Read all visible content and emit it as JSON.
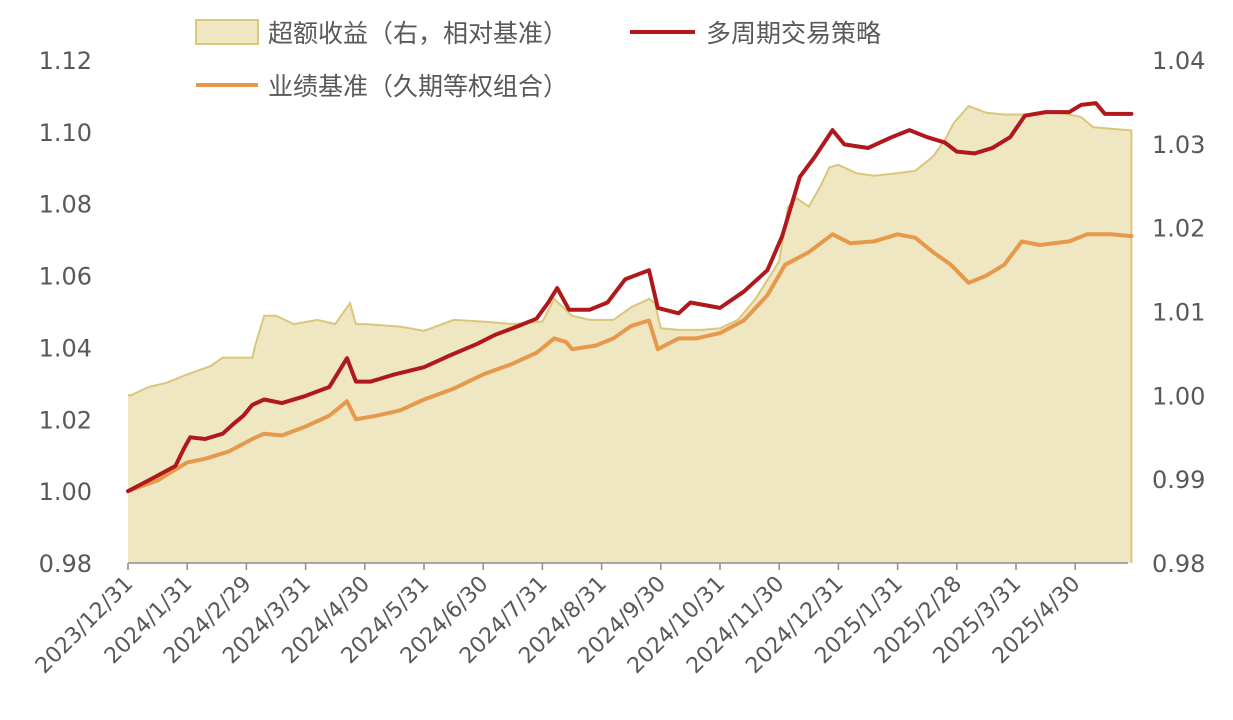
{
  "chart_data": {
    "type": "line",
    "x_categories": [
      "2023/12/31",
      "2024/1/31",
      "2024/2/29",
      "2024/3/31",
      "2024/4/30",
      "2024/5/31",
      "2024/6/30",
      "2024/7/31",
      "2024/8/31",
      "2024/9/30",
      "2024/10/31",
      "2024/11/30",
      "2024/12/31",
      "2025/1/31",
      "2025/2/28",
      "2025/3/31",
      "2025/4/30"
    ],
    "left_axis": {
      "ylim": [
        0.98,
        1.12
      ],
      "ticks": [
        "0.98",
        "1.00",
        "1.02",
        "1.04",
        "1.06",
        "1.08",
        "1.10",
        "1.12"
      ]
    },
    "right_axis": {
      "ylim": [
        0.98,
        1.04
      ],
      "ticks": [
        "0.98",
        "0.99",
        "1.00",
        "1.01",
        "1.02",
        "1.03",
        "1.04"
      ]
    },
    "legend": [
      {
        "label": "超额收益（右，相对基准）",
        "kind": "area"
      },
      {
        "label": "多周期交易策略",
        "kind": "line"
      },
      {
        "label": "业绩基准（久期等权组合）",
        "kind": "line"
      }
    ],
    "series": [
      {
        "name": "超额收益（右，相对基准）",
        "axis": "right",
        "color": "#d9c77a",
        "fill": "#efe6c2",
        "points": [
          [
            0,
            1.0
          ],
          [
            0.05,
            1.0
          ],
          [
            0.35,
            1.001
          ],
          [
            0.65,
            1.0015
          ],
          [
            1.0,
            1.0025
          ],
          [
            1.4,
            1.0035
          ],
          [
            1.6,
            1.0045
          ],
          [
            2.1,
            1.0045
          ],
          [
            2.15,
            1.006
          ],
          [
            2.3,
            1.0095
          ],
          [
            2.5,
            1.0095
          ],
          [
            2.8,
            1.0085
          ],
          [
            3.2,
            1.009
          ],
          [
            3.5,
            1.0085
          ],
          [
            3.75,
            1.011
          ],
          [
            3.85,
            1.0085
          ],
          [
            4.0,
            1.0085
          ],
          [
            4.6,
            1.0082
          ],
          [
            5.0,
            1.0077
          ],
          [
            5.5,
            1.009
          ],
          [
            6.0,
            1.0088
          ],
          [
            6.5,
            1.0085
          ],
          [
            7.0,
            1.0088
          ],
          [
            7.2,
            1.0115
          ],
          [
            7.5,
            1.0095
          ],
          [
            7.8,
            1.009
          ],
          [
            8.2,
            1.009
          ],
          [
            8.5,
            1.0105
          ],
          [
            8.8,
            1.0115
          ],
          [
            8.9,
            1.011
          ],
          [
            9.0,
            1.008
          ],
          [
            9.3,
            1.0078
          ],
          [
            9.7,
            1.0078
          ],
          [
            10.0,
            1.008
          ],
          [
            10.3,
            1.009
          ],
          [
            10.6,
            1.0115
          ],
          [
            11.0,
            1.016
          ],
          [
            11.15,
            1.0225
          ],
          [
            11.3,
            1.0235
          ],
          [
            11.5,
            1.0225
          ],
          [
            11.7,
            1.025
          ],
          [
            11.85,
            1.0272
          ],
          [
            12.0,
            1.0275
          ],
          [
            12.3,
            1.0265
          ],
          [
            12.6,
            1.0262
          ],
          [
            13.0,
            1.0265
          ],
          [
            13.3,
            1.0268
          ],
          [
            13.6,
            1.0285
          ],
          [
            13.8,
            1.0305
          ],
          [
            13.95,
            1.0325
          ],
          [
            14.2,
            1.0345
          ],
          [
            14.5,
            1.0337
          ],
          [
            14.8,
            1.0335
          ],
          [
            15.2,
            1.0335
          ],
          [
            15.6,
            1.0338
          ],
          [
            15.9,
            1.0335
          ],
          [
            16.1,
            1.0332
          ],
          [
            16.3,
            1.032
          ],
          [
            16.6,
            1.0318
          ],
          [
            16.95,
            1.0316
          ]
        ]
      },
      {
        "name": "多周期交易策略",
        "axis": "left",
        "color": "#b0181c",
        "points": [
          [
            0,
            1.0
          ],
          [
            0.35,
            1.003
          ],
          [
            0.8,
            1.007
          ],
          [
            0.95,
            1.012
          ],
          [
            1.05,
            1.015
          ],
          [
            1.3,
            1.0145
          ],
          [
            1.6,
            1.016
          ],
          [
            1.8,
            1.019
          ],
          [
            1.95,
            1.021
          ],
          [
            2.1,
            1.024
          ],
          [
            2.3,
            1.0255
          ],
          [
            2.6,
            1.0245
          ],
          [
            3.0,
            1.0265
          ],
          [
            3.4,
            1.029
          ],
          [
            3.7,
            1.037
          ],
          [
            3.85,
            1.0305
          ],
          [
            4.1,
            1.0305
          ],
          [
            4.5,
            1.0325
          ],
          [
            5.0,
            1.0345
          ],
          [
            5.4,
            1.0375
          ],
          [
            5.9,
            1.041
          ],
          [
            6.2,
            1.0435
          ],
          [
            6.6,
            1.046
          ],
          [
            6.9,
            1.048
          ],
          [
            7.1,
            1.0525
          ],
          [
            7.25,
            1.0565
          ],
          [
            7.45,
            1.0505
          ],
          [
            7.8,
            1.0505
          ],
          [
            8.1,
            1.0525
          ],
          [
            8.4,
            1.059
          ],
          [
            8.8,
            1.0615
          ],
          [
            8.95,
            1.051
          ],
          [
            9.3,
            1.0495
          ],
          [
            9.5,
            1.0525
          ],
          [
            10.0,
            1.051
          ],
          [
            10.4,
            1.0555
          ],
          [
            10.8,
            1.0615
          ],
          [
            11.05,
            1.071
          ],
          [
            11.35,
            1.0875
          ],
          [
            11.6,
            1.093
          ],
          [
            11.9,
            1.1005
          ],
          [
            12.1,
            1.0965
          ],
          [
            12.5,
            1.0955
          ],
          [
            12.9,
            1.0985
          ],
          [
            13.2,
            1.1005
          ],
          [
            13.5,
            1.0985
          ],
          [
            13.8,
            1.097
          ],
          [
            14.0,
            1.0945
          ],
          [
            14.3,
            1.094
          ],
          [
            14.6,
            1.0955
          ],
          [
            14.9,
            1.0985
          ],
          [
            15.15,
            1.1045
          ],
          [
            15.5,
            1.1055
          ],
          [
            15.9,
            1.1055
          ],
          [
            16.1,
            1.1075
          ],
          [
            16.35,
            1.108
          ],
          [
            16.5,
            1.105
          ],
          [
            16.95,
            1.105
          ]
        ]
      },
      {
        "name": "业绩基准（久期等权组合）",
        "axis": "left",
        "color": "#e6994a",
        "points": [
          [
            0,
            1.0
          ],
          [
            0.5,
            1.003
          ],
          [
            1.0,
            1.008
          ],
          [
            1.3,
            1.009
          ],
          [
            1.7,
            1.011
          ],
          [
            2.1,
            1.0145
          ],
          [
            2.3,
            1.016
          ],
          [
            2.6,
            1.0155
          ],
          [
            3.0,
            1.018
          ],
          [
            3.4,
            1.021
          ],
          [
            3.7,
            1.025
          ],
          [
            3.85,
            1.02
          ],
          [
            4.2,
            1.021
          ],
          [
            4.6,
            1.0225
          ],
          [
            5.0,
            1.0255
          ],
          [
            5.5,
            1.0285
          ],
          [
            6.0,
            1.0325
          ],
          [
            6.5,
            1.0355
          ],
          [
            6.9,
            1.0385
          ],
          [
            7.2,
            1.0425
          ],
          [
            7.4,
            1.0415
          ],
          [
            7.5,
            1.0395
          ],
          [
            7.9,
            1.0405
          ],
          [
            8.2,
            1.0425
          ],
          [
            8.5,
            1.046
          ],
          [
            8.8,
            1.0475
          ],
          [
            8.95,
            1.0395
          ],
          [
            9.3,
            1.0425
          ],
          [
            9.6,
            1.0425
          ],
          [
            10.0,
            1.044
          ],
          [
            10.4,
            1.0475
          ],
          [
            10.8,
            1.0545
          ],
          [
            11.1,
            1.063
          ],
          [
            11.5,
            1.0665
          ],
          [
            11.9,
            1.0715
          ],
          [
            12.2,
            1.069
          ],
          [
            12.6,
            1.0695
          ],
          [
            13.0,
            1.0715
          ],
          [
            13.3,
            1.0705
          ],
          [
            13.6,
            1.0665
          ],
          [
            13.9,
            1.063
          ],
          [
            14.2,
            1.058
          ],
          [
            14.5,
            1.06
          ],
          [
            14.8,
            1.063
          ],
          [
            15.1,
            1.0695
          ],
          [
            15.4,
            1.0685
          ],
          [
            15.9,
            1.0695
          ],
          [
            16.2,
            1.0715
          ],
          [
            16.6,
            1.0715
          ],
          [
            16.95,
            1.071
          ]
        ]
      }
    ]
  }
}
